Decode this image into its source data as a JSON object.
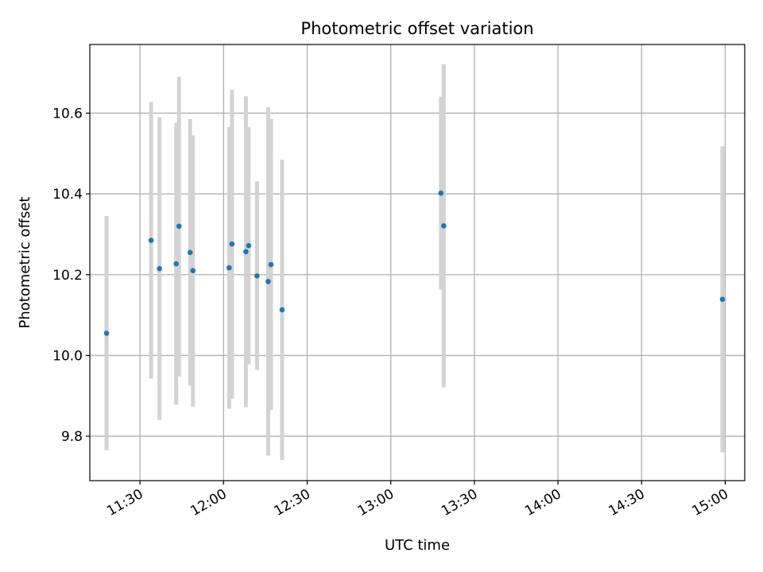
{
  "chart_data": {
    "type": "scatter",
    "title": "Photometric offset variation",
    "xlabel": "UTC time",
    "ylabel": "Photometric offset",
    "x_ticks": [
      "11:30",
      "12:00",
      "12:30",
      "13:00",
      "13:30",
      "14:00",
      "14:30",
      "15:00"
    ],
    "y_ticks": [
      "9.8",
      "10.0",
      "10.2",
      "10.4",
      "10.6"
    ],
    "xlim": [
      "11:12",
      "15:07"
    ],
    "ylim": [
      9.69,
      10.77
    ],
    "grid": true,
    "marker_color": "#1f77b4",
    "errorbar_color": "#d3d3d3",
    "points": [
      {
        "t": "11:18",
        "y": 10.055,
        "lo": 9.765,
        "hi": 10.345
      },
      {
        "t": "11:34",
        "y": 10.285,
        "lo": 9.943,
        "hi": 10.628
      },
      {
        "t": "11:37",
        "y": 10.215,
        "lo": 9.84,
        "hi": 10.59
      },
      {
        "t": "11:43",
        "y": 10.227,
        "lo": 9.878,
        "hi": 10.576
      },
      {
        "t": "11:44",
        "y": 10.32,
        "lo": 9.948,
        "hi": 10.69
      },
      {
        "t": "11:48",
        "y": 10.255,
        "lo": 9.925,
        "hi": 10.585
      },
      {
        "t": "11:49",
        "y": 10.21,
        "lo": 9.873,
        "hi": 10.545
      },
      {
        "t": "12:02",
        "y": 10.217,
        "lo": 9.868,
        "hi": 10.566
      },
      {
        "t": "12:03",
        "y": 10.276,
        "lo": 9.893,
        "hi": 10.658
      },
      {
        "t": "12:08",
        "y": 10.257,
        "lo": 9.872,
        "hi": 10.642
      },
      {
        "t": "12:09",
        "y": 10.272,
        "lo": 9.978,
        "hi": 10.566
      },
      {
        "t": "12:12",
        "y": 10.197,
        "lo": 9.964,
        "hi": 10.431
      },
      {
        "t": "12:16",
        "y": 10.183,
        "lo": 9.752,
        "hi": 10.615
      },
      {
        "t": "12:17",
        "y": 10.225,
        "lo": 9.865,
        "hi": 10.586
      },
      {
        "t": "12:21",
        "y": 10.113,
        "lo": 9.741,
        "hi": 10.485
      },
      {
        "t": "13:18",
        "y": 10.402,
        "lo": 10.163,
        "hi": 10.641
      },
      {
        "t": "13:19",
        "y": 10.321,
        "lo": 9.921,
        "hi": 10.721
      },
      {
        "t": "14:59",
        "y": 10.139,
        "lo": 9.76,
        "hi": 10.518
      }
    ]
  }
}
